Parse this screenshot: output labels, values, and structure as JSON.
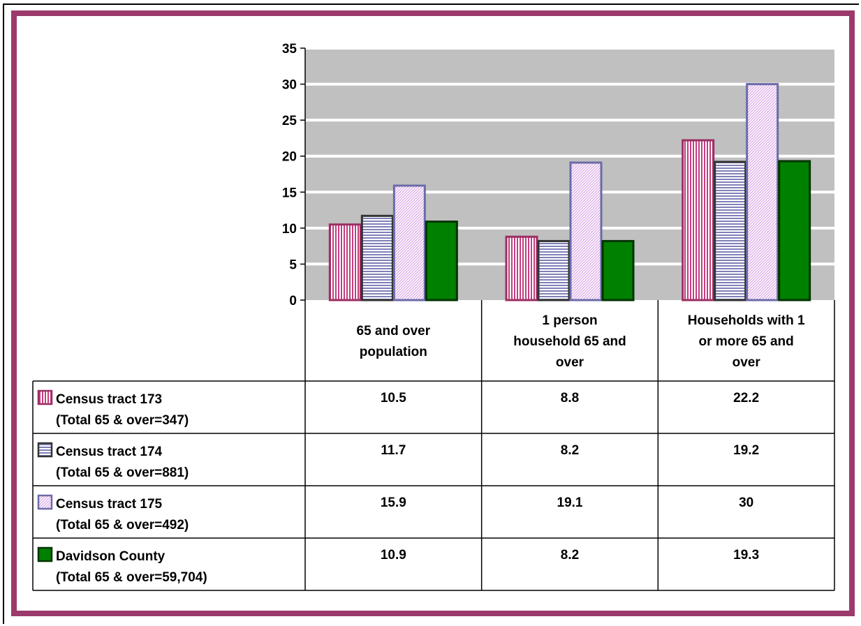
{
  "chart_data": {
    "type": "bar",
    "categories": [
      [
        "65 and over",
        "population"
      ],
      [
        "1 person",
        "household 65 and",
        "over"
      ],
      [
        "Households with 1",
        "or more  65 and",
        "over"
      ]
    ],
    "ylim": [
      0,
      35
    ],
    "yticks": [
      0,
      5,
      10,
      15,
      20,
      25,
      30,
      35
    ],
    "grid": true,
    "series": [
      {
        "name": "Census tract 173",
        "subtitle": "(Total 65 & over=347)",
        "values": [
          10.5,
          8.8,
          22.2
        ],
        "labels": [
          "10.5",
          "8.8",
          "22.2"
        ],
        "fill": "#c43d7f",
        "stroke": "#9b2f63",
        "pattern": "vertical"
      },
      {
        "name": "Census tract 174",
        "subtitle": "(Total 65 & over=881)",
        "values": [
          11.7,
          8.2,
          19.2
        ],
        "labels": [
          "11.7",
          "8.2",
          "19.2"
        ],
        "fill": "#7f80b8",
        "stroke": "#333333",
        "pattern": "horizontal"
      },
      {
        "name": "Census tract 175",
        "subtitle": "(Total 65 & over=492)",
        "values": [
          15.9,
          19.1,
          30
        ],
        "labels": [
          "15.9",
          "19.1",
          "30"
        ],
        "fill": "#d9a8e6",
        "stroke": "#6b6ba8",
        "pattern": "diagonal"
      },
      {
        "name": "Davidson County",
        "subtitle": "(Total 65 & over=59,704)",
        "values": [
          10.9,
          8.2,
          19.3
        ],
        "labels": [
          "10.9",
          "8.2",
          "19.3"
        ],
        "fill": "#008000",
        "stroke": "#003300",
        "pattern": "solid"
      }
    ],
    "plot_background": "#c0c0c0",
    "frame_color": "#9b3a6b"
  }
}
